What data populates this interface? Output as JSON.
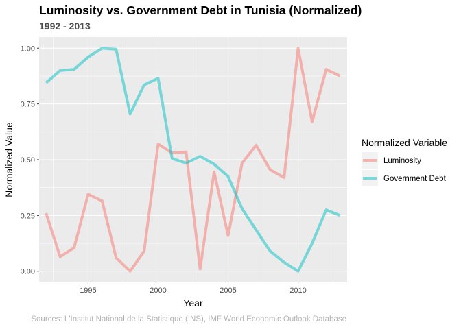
{
  "chart_data": {
    "type": "line",
    "title": "Luminosity vs. Government Debt in Tunisia (Normalized)",
    "subtitle": "1992 - 2013",
    "xlabel": "Year",
    "ylabel": "Normalized Value",
    "caption": "Sources: L'Institut National de la Statistique (INS), IMF World Economic Outlook Database",
    "xlim": [
      1991.5,
      2013.5
    ],
    "ylim": [
      -0.05,
      1.05
    ],
    "x_ticks": [
      1995,
      2000,
      2005,
      2010
    ],
    "y_ticks": [
      0,
      0.25,
      0.5,
      0.75,
      1
    ],
    "y_tick_labels": [
      "0.00",
      "0.25",
      "0.50",
      "0.75",
      "1.00"
    ],
    "grid": true,
    "legend": {
      "title": "Normalized Variable",
      "position": "right"
    },
    "x": [
      1992,
      1993,
      1994,
      1995,
      1996,
      1997,
      1998,
      1999,
      2000,
      2001,
      2002,
      2003,
      2004,
      2005,
      2006,
      2007,
      2008,
      2009,
      2010,
      2011,
      2012,
      2013
    ],
    "series": [
      {
        "name": "Luminosity",
        "color": "#F8766D",
        "values": [
          0.26,
          0.065,
          0.105,
          0.345,
          0.315,
          0.06,
          0.0,
          0.09,
          0.57,
          0.53,
          0.535,
          0.01,
          0.445,
          0.16,
          0.485,
          0.565,
          0.455,
          0.42,
          1.0,
          0.67,
          0.905,
          0.875
        ]
      },
      {
        "name": "Government Debt",
        "color": "#00BFC4",
        "values": [
          0.845,
          0.9,
          0.905,
          0.96,
          1.0,
          0.995,
          0.705,
          0.835,
          0.865,
          0.505,
          0.485,
          0.515,
          0.48,
          0.425,
          0.28,
          0.185,
          0.09,
          0.04,
          0.0,
          0.125,
          0.275,
          0.25
        ]
      }
    ]
  }
}
